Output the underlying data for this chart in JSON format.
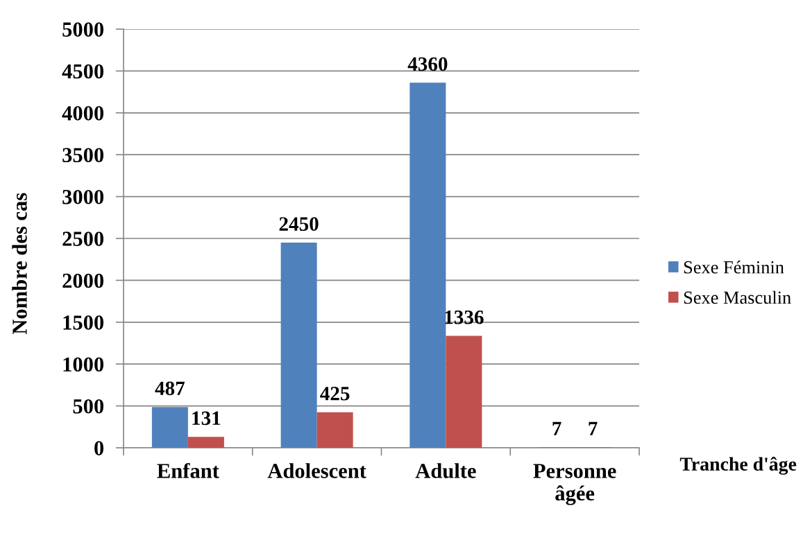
{
  "chart_data": {
    "type": "bar",
    "ylabel": "Nombre des cas",
    "xlabel": "Tranche d'âge",
    "categories": [
      "Enfant",
      "Adolescent",
      "Adulte",
      "Personne âgée"
    ],
    "series": [
      {
        "name": "Sexe Féminin",
        "color": "#4f81bd",
        "values": [
          487,
          2450,
          4360,
          7
        ]
      },
      {
        "name": "Sexe Masculin",
        "color": "#c0504d",
        "values": [
          131,
          425,
          1336,
          7
        ]
      }
    ],
    "ylim": [
      0,
      5000
    ],
    "yticks": [
      0,
      500,
      1000,
      1500,
      2000,
      2500,
      3000,
      3500,
      4000,
      4500,
      5000
    ],
    "grid": "y",
    "legend": "right",
    "data_labels": true
  }
}
